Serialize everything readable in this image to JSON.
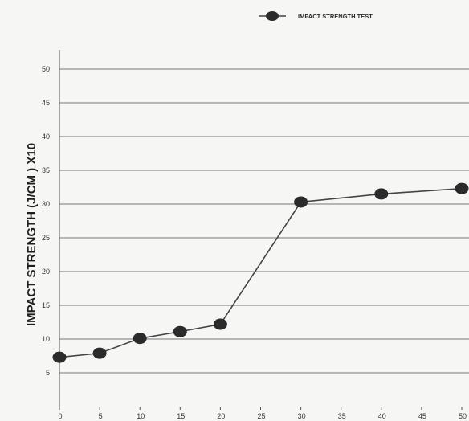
{
  "chart_data": {
    "type": "line",
    "title": "",
    "xlabel": "",
    "ylabel": "IMPACT STRENGTH (J/CM  ) X10",
    "x": [
      0,
      5,
      10,
      15,
      20,
      30,
      40,
      50
    ],
    "series": [
      {
        "name": "IMPACT STRENGTH TEST",
        "values": [
          7.3,
          7.9,
          10.1,
          11.1,
          12.2,
          30.3,
          31.5,
          32.3
        ]
      }
    ],
    "xticks": [
      "0",
      "5",
      "10",
      "15",
      "20",
      "25",
      "30",
      "35",
      "40",
      "45",
      "50"
    ],
    "yticks": [
      "5",
      "10",
      "15",
      "20",
      "25",
      "30",
      "35",
      "40",
      "45",
      "50"
    ],
    "xlim": [
      0,
      50
    ],
    "ylim": [
      0,
      50
    ],
    "grid": "horizontal",
    "legend_position": "top-right",
    "colors": {
      "line": "#444444",
      "marker": "#2b2b2b",
      "grid": "#777777"
    }
  }
}
